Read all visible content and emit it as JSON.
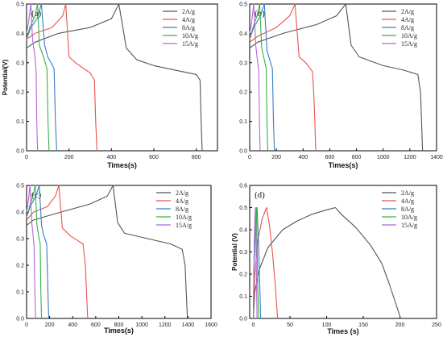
{
  "chart_data": [
    {
      "type": "line",
      "panel_label": "(a)",
      "xlabel": "Times(s)",
      "ylabel": "Potential(V)",
      "xlim": [
        0,
        900
      ],
      "ylim": [
        0,
        0.5
      ],
      "xticks": [
        "0",
        "200",
        "400",
        "600",
        "800"
      ],
      "yticks": [
        "0.0",
        "0.1",
        "0.2",
        "0.3",
        "0.4",
        "0.5"
      ],
      "legend_position": "top-right",
      "series": [
        {
          "name": "2A/g",
          "color": "#555555",
          "x": [
            0,
            40,
            150,
            300,
            400,
            435,
            470,
            520,
            600,
            700,
            800,
            818,
            823,
            828
          ],
          "y": [
            0.35,
            0.37,
            0.4,
            0.42,
            0.45,
            0.5,
            0.35,
            0.31,
            0.29,
            0.275,
            0.26,
            0.24,
            0.1,
            0.0
          ]
        },
        {
          "name": "4A/g",
          "color": "#e8534a",
          "x": [
            0,
            40,
            120,
            170,
            185,
            200,
            230,
            300,
            320,
            326,
            332
          ],
          "y": [
            0.38,
            0.4,
            0.42,
            0.46,
            0.5,
            0.32,
            0.3,
            0.265,
            0.24,
            0.1,
            0.0
          ]
        },
        {
          "name": "8A/g",
          "color": "#3a7cc0",
          "x": [
            0,
            20,
            50,
            70,
            85,
            100,
            130,
            136,
            142
          ],
          "y": [
            0.38,
            0.42,
            0.45,
            0.5,
            0.36,
            0.32,
            0.28,
            0.1,
            0.0
          ]
        },
        {
          "name": "10A/g",
          "color": "#3ab04a",
          "x": [
            0,
            15,
            40,
            52,
            60,
            80,
            96,
            101,
            106
          ],
          "y": [
            0.38,
            0.42,
            0.46,
            0.5,
            0.36,
            0.32,
            0.28,
            0.1,
            0.0
          ]
        },
        {
          "name": "15A/g",
          "color": "#b565d8",
          "x": [
            0,
            10,
            20,
            28,
            38,
            45,
            48,
            52
          ],
          "y": [
            0.4,
            0.44,
            0.5,
            0.38,
            0.33,
            0.27,
            0.1,
            0.0
          ]
        }
      ]
    },
    {
      "type": "line",
      "panel_label": "(b)",
      "xlabel": "Times(s)",
      "ylabel": "",
      "xlim": [
        0,
        1400
      ],
      "ylim": [
        0,
        0.5
      ],
      "xticks": [
        "0",
        "200",
        "400",
        "600",
        "800",
        "1000",
        "1200",
        "1400"
      ],
      "yticks": [
        "0.0",
        "0.1",
        "0.2",
        "0.3",
        "0.4",
        "0.5"
      ],
      "legend_position": "top-right",
      "series": [
        {
          "name": "2A/g",
          "color": "#555555",
          "x": [
            0,
            60,
            250,
            500,
            650,
            720,
            760,
            820,
            1000,
            1150,
            1260,
            1280,
            1288,
            1295
          ],
          "y": [
            0.35,
            0.37,
            0.4,
            0.43,
            0.46,
            0.5,
            0.36,
            0.32,
            0.29,
            0.275,
            0.26,
            0.2,
            0.1,
            0.0
          ]
        },
        {
          "name": "4A/g",
          "color": "#e8534a",
          "x": [
            0,
            60,
            200,
            300,
            340,
            370,
            420,
            470,
            480,
            488,
            495
          ],
          "y": [
            0.37,
            0.39,
            0.42,
            0.46,
            0.5,
            0.32,
            0.3,
            0.27,
            0.2,
            0.1,
            0.0
          ]
        },
        {
          "name": "8A/g",
          "color": "#3a7cc0",
          "x": [
            0,
            30,
            80,
            110,
            130,
            150,
            170,
            178,
            185
          ],
          "y": [
            0.38,
            0.42,
            0.46,
            0.5,
            0.34,
            0.31,
            0.28,
            0.1,
            0.0
          ]
        },
        {
          "name": "10A/g",
          "color": "#3ab04a",
          "x": [
            0,
            25,
            55,
            75,
            90,
            110,
            124,
            130,
            135
          ],
          "y": [
            0.38,
            0.42,
            0.46,
            0.5,
            0.35,
            0.31,
            0.28,
            0.1,
            0.0
          ]
        },
        {
          "name": "15A/g",
          "color": "#b565d8",
          "x": [
            0,
            15,
            30,
            45,
            55,
            68,
            73,
            78
          ],
          "y": [
            0.4,
            0.44,
            0.5,
            0.36,
            0.32,
            0.27,
            0.1,
            0.0
          ]
        }
      ]
    },
    {
      "type": "line",
      "panel_label": "(c)",
      "xlabel": "Times(s)",
      "ylabel": "",
      "xlim": [
        0,
        1600
      ],
      "ylim": [
        0,
        0.5
      ],
      "xticks": [
        "0",
        "200",
        "400",
        "600",
        "800",
        "1000",
        "1200",
        "1400",
        "1600"
      ],
      "yticks": [
        "0.0",
        "0.1",
        "0.2",
        "0.3",
        "0.4",
        "0.5"
      ],
      "legend_position": "top-right",
      "series": [
        {
          "name": "2A/g",
          "color": "#555555",
          "x": [
            0,
            60,
            300,
            550,
            700,
            750,
            790,
            850,
            1050,
            1250,
            1350,
            1375,
            1385,
            1395
          ],
          "y": [
            0.35,
            0.37,
            0.4,
            0.43,
            0.46,
            0.5,
            0.36,
            0.32,
            0.3,
            0.28,
            0.26,
            0.2,
            0.1,
            0.0
          ]
        },
        {
          "name": "4A/g",
          "color": "#e8534a",
          "x": [
            0,
            60,
            180,
            250,
            280,
            310,
            380,
            490,
            510,
            520,
            530
          ],
          "y": [
            0.37,
            0.4,
            0.42,
            0.46,
            0.5,
            0.34,
            0.31,
            0.28,
            0.2,
            0.1,
            0.0
          ]
        },
        {
          "name": "8A/g",
          "color": "#3a7cc0",
          "x": [
            0,
            30,
            80,
            110,
            130,
            150,
            175,
            185,
            192
          ],
          "y": [
            0.38,
            0.42,
            0.46,
            0.5,
            0.35,
            0.31,
            0.28,
            0.1,
            0.0
          ]
        },
        {
          "name": "10A/g",
          "color": "#3ab04a",
          "x": [
            0,
            25,
            55,
            75,
            90,
            105,
            118,
            124,
            130
          ],
          "y": [
            0.38,
            0.42,
            0.46,
            0.5,
            0.35,
            0.31,
            0.28,
            0.1,
            0.0
          ]
        },
        {
          "name": "15A/g",
          "color": "#b565d8",
          "x": [
            0,
            15,
            30,
            45,
            55,
            65,
            72,
            78
          ],
          "y": [
            0.4,
            0.44,
            0.5,
            0.36,
            0.32,
            0.27,
            0.1,
            0.0
          ]
        }
      ]
    },
    {
      "type": "line",
      "panel_label": "(d)",
      "xlabel": "Times (s)",
      "ylabel": "Potential (V)",
      "xlim": [
        -5,
        250
      ],
      "ylim": [
        0,
        0.6
      ],
      "xticks": [
        "0",
        "50",
        "100",
        "150",
        "200",
        "250"
      ],
      "yticks": [
        "0.0",
        "0.1",
        "0.2",
        "0.3",
        "0.4",
        "0.5",
        "0.6"
      ],
      "legend_position": "top-right",
      "series": [
        {
          "name": "2A/g",
          "color": "#555555",
          "x": [
            0,
            2,
            8,
            20,
            40,
            60,
            80,
            100,
            112,
            120,
            140,
            160,
            175,
            185,
            195,
            201
          ],
          "y": [
            0.0,
            0.12,
            0.22,
            0.32,
            0.4,
            0.44,
            0.47,
            0.49,
            0.5,
            0.47,
            0.41,
            0.33,
            0.25,
            0.16,
            0.06,
            0.0
          ]
        },
        {
          "name": "4A/g",
          "color": "#e8534a",
          "x": [
            0,
            2,
            6,
            12,
            18,
            22,
            26,
            30,
            33
          ],
          "y": [
            0.0,
            0.2,
            0.35,
            0.45,
            0.5,
            0.42,
            0.3,
            0.15,
            0.0
          ]
        },
        {
          "name": "8A/g",
          "color": "#3a7cc0",
          "x": [
            0,
            1,
            3,
            5,
            7,
            8.5,
            10
          ],
          "y": [
            0.0,
            0.25,
            0.42,
            0.5,
            0.35,
            0.18,
            0.0
          ]
        },
        {
          "name": "10A/g",
          "color": "#3ab04a",
          "x": [
            0,
            1,
            2.5,
            4,
            5.5,
            7
          ],
          "y": [
            0.0,
            0.3,
            0.45,
            0.5,
            0.25,
            0.0
          ]
        },
        {
          "name": "15A/g",
          "color": "#b565d8",
          "x": [
            0,
            1,
            2,
            3,
            4,
            5
          ],
          "y": [
            0.0,
            0.3,
            0.45,
            0.5,
            0.25,
            0.0
          ]
        }
      ]
    }
  ]
}
